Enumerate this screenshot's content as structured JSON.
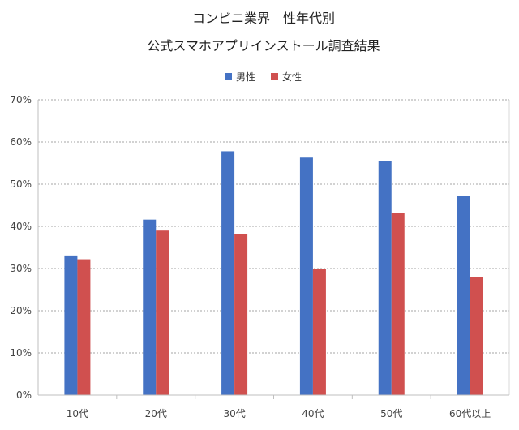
{
  "chart_data": {
    "type": "bar",
    "title": "コンビニ業界　性年代別",
    "subtitle": "公式スマホアプリインストール調査結果",
    "categories": [
      "10代",
      "20代",
      "30代",
      "40代",
      "50代",
      "60代以上"
    ],
    "series": [
      {
        "name": "男性",
        "color": "#4472C4",
        "values": [
          33.1,
          41.6,
          57.8,
          56.3,
          55.5,
          47.2
        ]
      },
      {
        "name": "女性",
        "color": "#D0504F",
        "values": [
          32.2,
          39.0,
          38.2,
          29.9,
          43.1,
          27.9
        ]
      }
    ],
    "ylim": [
      0,
      70
    ],
    "yticks": [
      "0%",
      "10%",
      "20%",
      "30%",
      "40%",
      "50%",
      "60%",
      "70%"
    ],
    "ytick_values": [
      0,
      10,
      20,
      30,
      40,
      50,
      60,
      70
    ],
    "grid": true,
    "legend_position": "top"
  }
}
